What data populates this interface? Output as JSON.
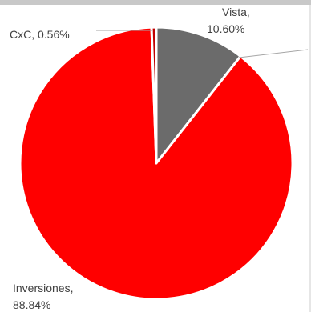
{
  "chart_data": {
    "type": "pie",
    "title": "",
    "series": [
      {
        "slices": [
          {
            "category": "Vista",
            "label_line1": "Vista,",
            "label_line2": "10.60%",
            "value": 10.6,
            "color": "#6b6b6b"
          },
          {
            "category": "Inversiones",
            "label_line1": "Inversiones,",
            "label_line2": "88.84%",
            "value": 88.84,
            "color": "#ff0000"
          },
          {
            "category": "CxC",
            "label_line1": "CxC, 0.56%",
            "label_line2": "",
            "value": 0.56,
            "color": "#c00000"
          }
        ]
      }
    ],
    "slice_border_color": "#ffffff",
    "leader_line_color": "#a6a6a6",
    "legend": "none",
    "start_angle_deg": 0,
    "direction": "clockwise"
  }
}
